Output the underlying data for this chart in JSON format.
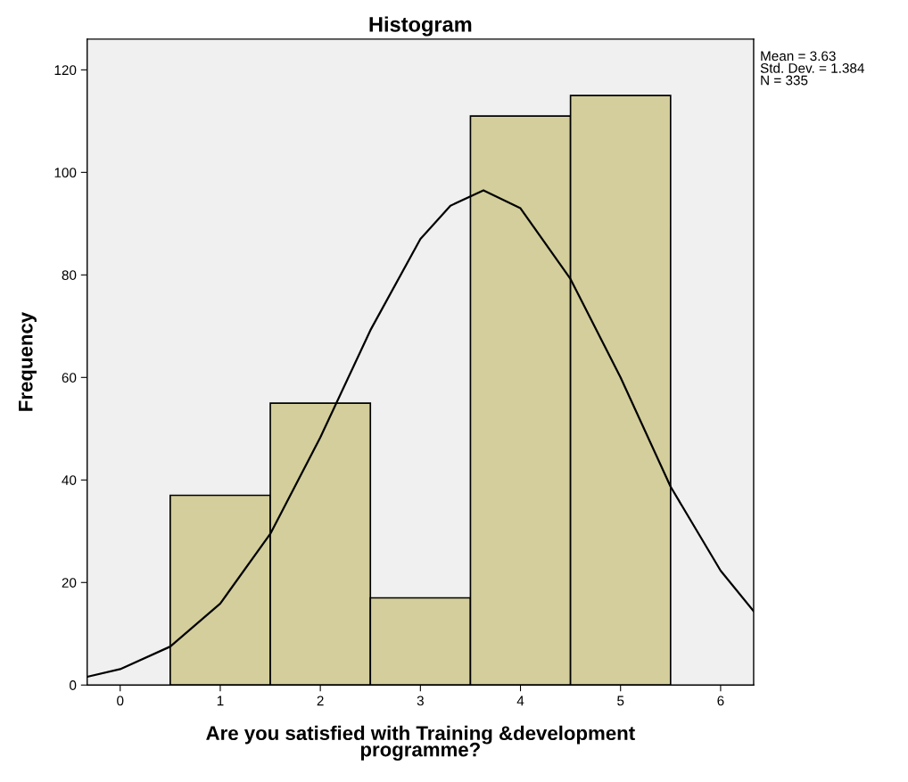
{
  "chart_data": {
    "type": "histogram",
    "title": "Histogram",
    "xlabel": "Are you satisfied with Training &development\nprogramme?",
    "ylabel": "Frequency",
    "bins": [
      0.5,
      1.5,
      2.5,
      3.5,
      4.5,
      5.5
    ],
    "values": [
      37,
      55,
      17,
      111,
      115
    ],
    "color": "#d3ce9b",
    "series": [
      {
        "type": "line",
        "color": "#000000",
        "x": [
          -0.33,
          0,
          0.5,
          1,
          1.5,
          2,
          2.5,
          3,
          3.3,
          3.63,
          4,
          4.5,
          5,
          5.5,
          6,
          6.33
        ],
        "values": [
          1.6,
          3.1,
          7.5,
          15.9,
          29.5,
          48.3,
          69.2,
          87,
          93.5,
          96.5,
          93,
          79.2,
          60,
          38.7,
          22.3,
          14.4
        ]
      }
    ],
    "xlim": [
      -0.33,
      6.33
    ],
    "xticks": [
      0,
      1,
      2,
      3,
      4,
      5,
      6
    ],
    "ylim": [
      0,
      126
    ],
    "yticks": [
      0,
      20,
      40,
      60,
      80,
      100,
      120
    ],
    "grid": false,
    "legend": false,
    "annotations": [
      "Mean = 3.63",
      "Std. Dev. = 1.384",
      "N = 335"
    ]
  }
}
